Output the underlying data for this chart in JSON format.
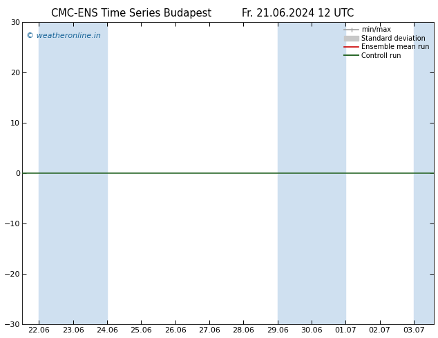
{
  "title": "CMC-ENS Time Series Budapest",
  "title2": "Fr. 21.06.2024 12 UTC",
  "watermark": "© weatheronline.in",
  "ylim": [
    -30,
    30
  ],
  "yticks": [
    -30,
    -20,
    -10,
    0,
    10,
    20,
    30
  ],
  "x_tick_labels": [
    "22.06",
    "23.06",
    "24.06",
    "25.06",
    "26.06",
    "27.06",
    "28.06",
    "29.06",
    "30.06",
    "01.07",
    "02.07",
    "03.07"
  ],
  "background_color": "#ffffff",
  "plot_bg_color": "#ffffff",
  "band_color": "#cfe0f0",
  "zero_line_color": "#2d6a2d",
  "legend_items": [
    {
      "label": "min/max",
      "color": "#a0a0a0",
      "lw": 1.2
    },
    {
      "label": "Standard deviation",
      "color": "#c8c8c8",
      "lw": 5
    },
    {
      "label": "Ensemble mean run",
      "color": "#cc0000",
      "lw": 1.2
    },
    {
      "label": "Controll run",
      "color": "#2d6a2d",
      "lw": 1.5
    }
  ],
  "band_ranges": [
    [
      0.0,
      1.0
    ],
    [
      1.0,
      2.0
    ],
    [
      7.0,
      8.0
    ],
    [
      8.0,
      9.0
    ],
    [
      11.0,
      11.6
    ]
  ],
  "title_fontsize": 10.5,
  "tick_fontsize": 8,
  "watermark_fontsize": 8,
  "watermark_color": "#1a6699"
}
